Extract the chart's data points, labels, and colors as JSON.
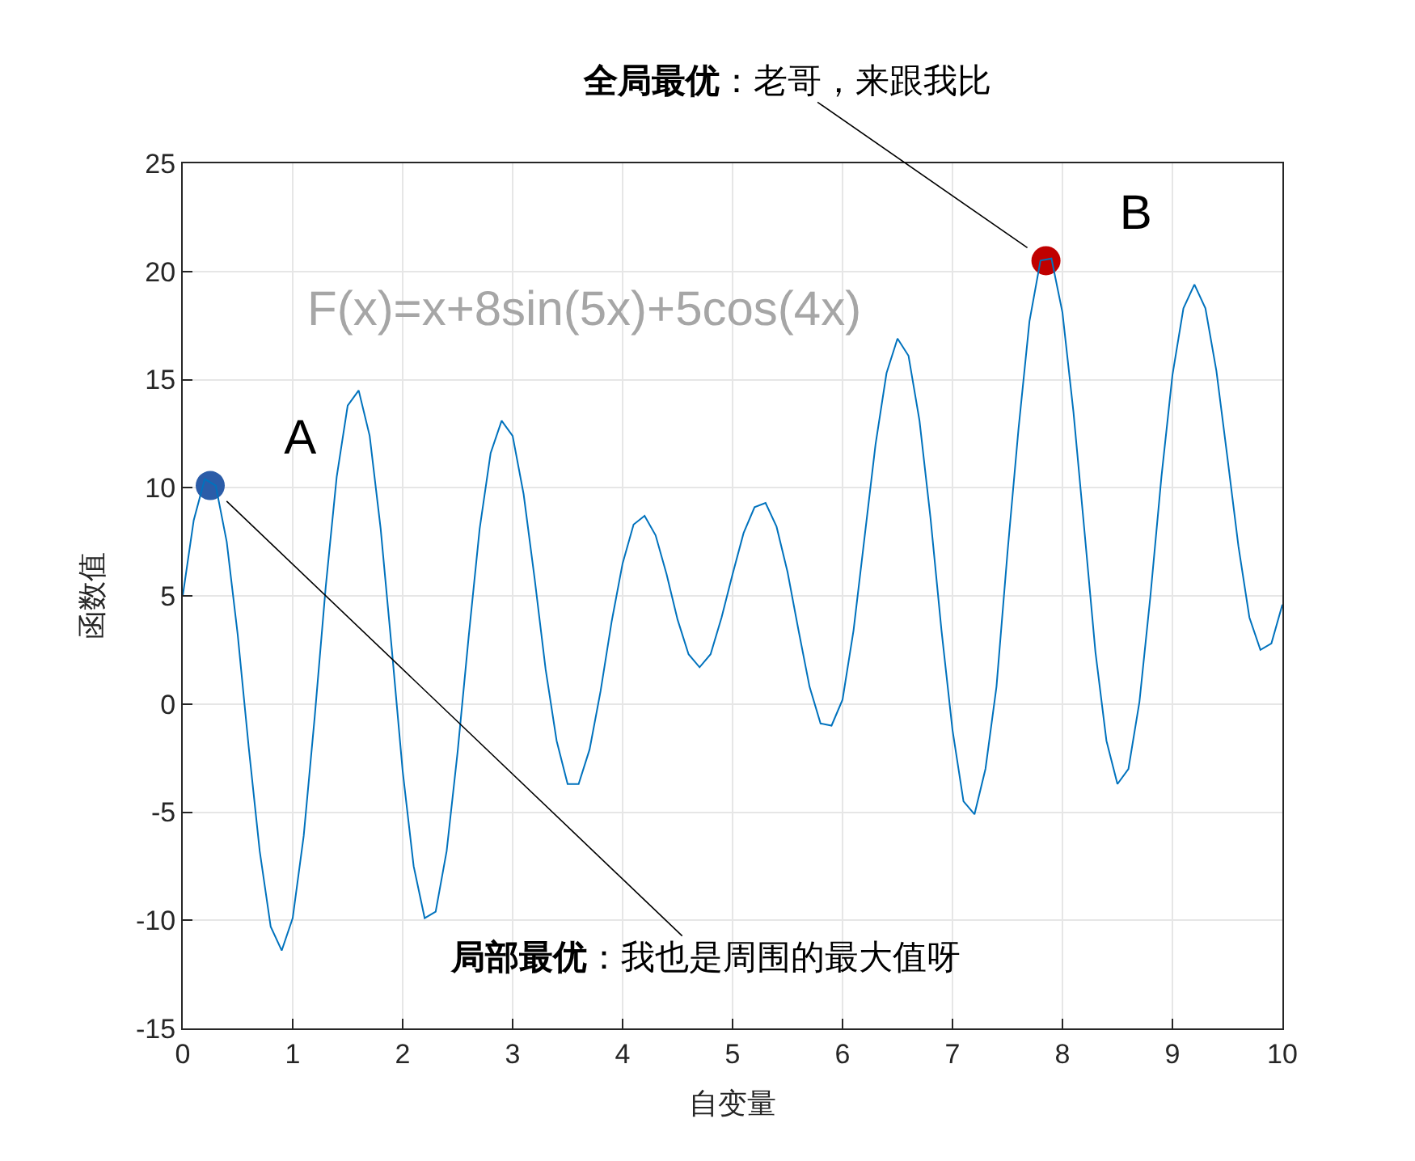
{
  "chart_data": {
    "type": "line",
    "xlabel": "自变量",
    "ylabel": "函数值",
    "x": [
      0,
      0.1,
      0.2,
      0.3,
      0.4,
      0.5,
      0.6,
      0.7,
      0.8,
      0.9,
      1,
      1.1,
      1.2,
      1.3,
      1.4,
      1.5,
      1.6,
      1.7,
      1.8,
      1.9,
      2,
      2.1,
      2.2,
      2.3,
      2.4,
      2.5,
      2.6,
      2.7,
      2.8,
      2.9,
      3,
      3.1,
      3.2,
      3.3,
      3.4,
      3.5,
      3.6,
      3.7,
      3.8,
      3.9,
      4,
      4.1,
      4.2,
      4.3,
      4.4,
      4.5,
      4.6,
      4.7,
      4.8,
      4.9,
      5,
      5.1,
      5.2,
      5.3,
      5.4,
      5.5,
      5.6,
      5.7,
      5.8,
      5.9,
      6,
      6.1,
      6.2,
      6.3,
      6.4,
      6.5,
      6.6,
      6.7,
      6.8,
      6.9,
      7,
      7.1,
      7.2,
      7.3,
      7.4,
      7.5,
      7.6,
      7.7,
      7.8,
      7.9,
      8,
      8.1,
      8.2,
      8.3,
      8.4,
      8.5,
      8.6,
      8.7,
      8.8,
      8.9,
      9,
      9.1,
      9.2,
      9.3,
      9.4,
      9.5,
      9.6,
      9.7,
      9.8,
      9.9,
      10
    ],
    "series": [
      {
        "color": "#0072bd",
        "marker": "none",
        "values": [
          5,
          8.5,
          10.4,
          10.1,
          7.5,
          3.2,
          -2,
          -6.8,
          -10.3,
          -11.4,
          -9.9,
          -6.1,
          -0.6,
          5.4,
          10.5,
          13.8,
          14.5,
          12.4,
          8.1,
          2.6,
          -3.1,
          -7.5,
          -9.9,
          -9.6,
          -6.8,
          -2.2,
          3.1,
          8.1,
          11.6,
          13.1,
          12.4,
          9.7,
          5.8,
          1.6,
          -1.7,
          -3.7,
          -3.7,
          -2.1,
          0.6,
          3.8,
          6.5,
          8.3,
          8.7,
          7.8,
          6,
          3.9,
          2.3,
          1.7,
          2.3,
          4,
          6,
          7.9,
          9.1,
          9.3,
          8.2,
          6.1,
          3.4,
          0.8,
          -0.9,
          -1,
          0.2,
          3.4,
          7.7,
          12,
          15.3,
          16.9,
          16.1,
          13.1,
          8.6,
          3.4,
          -1.2,
          -4.5,
          -5.1,
          -3,
          0.8,
          7,
          12.7,
          17.7,
          20.5,
          20.6,
          18.1,
          13.5,
          8,
          2.4,
          -1.7,
          -3.7,
          -3,
          0.1,
          5,
          10.5,
          15.2,
          18.3,
          19.4,
          18.3,
          15.4,
          11.4,
          7.3,
          4,
          2.5,
          2.8,
          4.6
        ]
      },
      {
        "type": "scatter",
        "name": "A",
        "color": "#2b5ca8",
        "marker": "circle",
        "x": [
          0.25
        ],
        "values": [
          10.1
        ]
      },
      {
        "type": "scatter",
        "name": "B",
        "color": "#c00000",
        "marker": "circle",
        "x": [
          7.85
        ],
        "values": [
          20.5
        ]
      }
    ],
    "annotations": [
      "F(x)=x+8sin(5x)+5cos(4x)",
      {
        "text": "局部最优：我也是周围的最大值呀",
        "x": 0.25,
        "y": 10.1
      },
      {
        "text": "全局最优：老哥，来跟我比",
        "x": 7.85,
        "y": 20.5
      }
    ],
    "xlim": [
      0,
      10
    ],
    "xticks": [
      0,
      1,
      2,
      3,
      4,
      5,
      6,
      7,
      8,
      9,
      10
    ],
    "ylim": [
      -15,
      25
    ],
    "yticks": [
      -15,
      -10,
      -5,
      0,
      5,
      10,
      15,
      20,
      25
    ],
    "grid": true,
    "legend": false
  }
}
